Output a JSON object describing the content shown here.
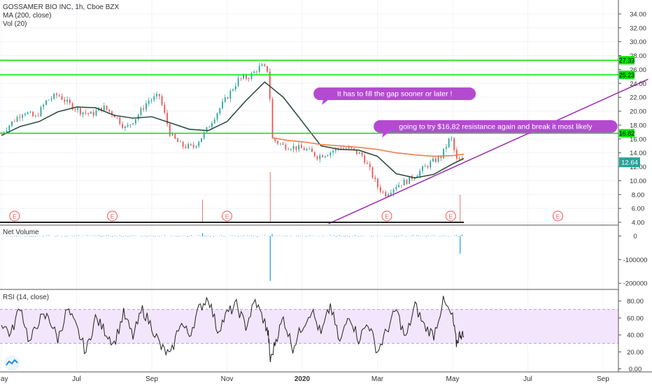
{
  "header": {
    "symbol_line": "GOSSAMER BIO INC, 1h, Cboe BZX",
    "ma_label": "MA (200, close)",
    "vol_label": "Vol (20)"
  },
  "panes": {
    "net_volume_label": "Net Volume",
    "rsi_label": "RSI (14, close)"
  },
  "colors": {
    "up": "#26a69a",
    "down": "#ef5350",
    "ma": "#2f4f3f",
    "support_resistance": "#00e600",
    "trendline": "#9c27b0",
    "annotation_bg": "#b44ad0",
    "rsi_band": "#f3e5fb",
    "net_volume": "#2196f3",
    "price_badge": "#26a69a"
  },
  "chart_data": [
    {
      "type": "candlestick",
      "title": "GOSSAMER BIO INC, 1h, Cboe BZX",
      "price_axis": [
        4.0,
        6.0,
        8.0,
        10.0,
        12.0,
        14.0,
        16.0,
        18.0,
        20.0,
        22.0,
        24.0,
        26.0,
        28.0,
        30.0,
        32.0,
        34.0
      ],
      "price_axis_labels": [
        "4.00",
        "6.00",
        "8.00",
        "10.00",
        "12.00",
        "14.00",
        "16.00",
        "18.00",
        "20.00",
        "22.00",
        "24.00",
        "26.00",
        "28.00",
        "30.00",
        "32.00",
        "34.00"
      ],
      "ylim": [
        3.8,
        35.4
      ],
      "time_labels": [
        "May",
        "Jul",
        "Sep",
        "Nov",
        "2020",
        "Mar",
        "May",
        "Jul",
        "Sep"
      ],
      "time_label_index": [
        0,
        2,
        4,
        6,
        8,
        10,
        12,
        14,
        16
      ],
      "xlim_index": [
        0,
        17.2
      ],
      "close_path": [
        [
          0.0,
          16.8
        ],
        [
          0.3,
          18.5
        ],
        [
          0.6,
          20.0
        ],
        [
          0.9,
          19.0
        ],
        [
          1.2,
          21.5
        ],
        [
          1.5,
          22.4
        ],
        [
          1.8,
          21.0
        ],
        [
          2.1,
          20.0
        ],
        [
          2.4,
          19.5
        ],
        [
          2.7,
          20.6
        ],
        [
          3.0,
          19.5
        ],
        [
          3.3,
          17.5
        ],
        [
          3.6,
          19.2
        ],
        [
          3.9,
          21.5
        ],
        [
          4.2,
          22.2
        ],
        [
          4.5,
          16.5
        ],
        [
          4.8,
          15.0
        ],
        [
          5.1,
          14.8
        ],
        [
          5.4,
          16.8
        ],
        [
          5.7,
          19.5
        ],
        [
          6.0,
          22.0
        ],
        [
          6.3,
          24.5
        ],
        [
          6.6,
          25.0
        ],
        [
          6.9,
          26.5
        ],
        [
          7.1,
          25.8
        ],
        [
          7.2,
          16.0
        ],
        [
          7.5,
          15.0
        ],
        [
          7.8,
          14.8
        ],
        [
          8.1,
          14.5
        ],
        [
          8.4,
          13.5
        ],
        [
          8.7,
          14.0
        ],
        [
          9.0,
          14.8
        ],
        [
          9.3,
          14.5
        ],
        [
          9.6,
          13.6
        ],
        [
          9.8,
          11.5
        ],
        [
          10.0,
          9.2
        ],
        [
          10.2,
          8.0
        ],
        [
          10.5,
          9.3
        ],
        [
          10.8,
          10.0
        ],
        [
          11.1,
          11.2
        ],
        [
          11.4,
          12.5
        ],
        [
          11.7,
          13.5
        ],
        [
          11.95,
          16.4
        ],
        [
          12.1,
          13.0
        ],
        [
          12.3,
          12.64
        ]
      ],
      "ma200_path": [
        [
          0.0,
          16.5
        ],
        [
          0.5,
          17.8
        ],
        [
          1.0,
          18.5
        ],
        [
          1.5,
          19.9
        ],
        [
          2.0,
          20.6
        ],
        [
          2.5,
          20.5
        ],
        [
          3.0,
          19.4
        ],
        [
          3.5,
          19.0
        ],
        [
          4.0,
          19.2
        ],
        [
          4.5,
          18.3
        ],
        [
          5.0,
          17.4
        ],
        [
          5.5,
          17.2
        ],
        [
          6.0,
          18.5
        ],
        [
          6.5,
          21.5
        ],
        [
          7.0,
          24.2
        ],
        [
          7.5,
          22.0
        ],
        [
          8.0,
          18.5
        ],
        [
          8.5,
          15.0
        ],
        [
          9.0,
          14.5
        ],
        [
          9.5,
          14.4
        ],
        [
          10.0,
          13.5
        ],
        [
          10.5,
          11.0
        ],
        [
          11.0,
          10.4
        ],
        [
          11.5,
          10.9
        ],
        [
          12.0,
          12.4
        ],
        [
          12.3,
          13.2
        ]
      ],
      "ema_path": [
        [
          7.2,
          16.2
        ],
        [
          7.6,
          15.8
        ],
        [
          8.0,
          15.6
        ],
        [
          8.5,
          15.2
        ],
        [
          9.0,
          15.0
        ],
        [
          9.5,
          14.8
        ],
        [
          10.0,
          14.5
        ],
        [
          10.5,
          14.0
        ],
        [
          11.0,
          13.7
        ],
        [
          11.5,
          13.5
        ],
        [
          12.0,
          13.6
        ],
        [
          12.3,
          13.8
        ]
      ],
      "horizontal_levels": [
        {
          "price": 27.33,
          "label": "27.33"
        },
        {
          "price": 25.23,
          "label": "25.23"
        },
        {
          "price": 16.82,
          "label": "16.82"
        }
      ],
      "trendline": {
        "from": [
          8.7,
          3.8
        ],
        "to": [
          17.2,
          24.6
        ]
      },
      "last_price": {
        "value": 12.64,
        "label": "12.64"
      },
      "annotations": [
        {
          "text": "It has to fill the gap sooner or later !",
          "anchor": [
            8.3,
            22.5
          ]
        },
        {
          "text": "going to try $16,82 resistance again  and break it most likely",
          "anchor": [
            9.9,
            17.8
          ]
        }
      ],
      "earnings_markers": {
        "label": "E",
        "index": [
          0.35,
          2.95,
          6.0,
          10.25,
          11.95,
          14.8
        ]
      },
      "volume_spikes": [
        {
          "index": 5.35,
          "value": 0.45
        },
        {
          "index": 7.15,
          "value": 1.0
        },
        {
          "index": 12.2,
          "value": 0.55
        }
      ]
    },
    {
      "type": "bar",
      "title": "Net Volume",
      "y_axis_labels": [
        "0",
        "-100000",
        "-200000"
      ],
      "y_axis_values": [
        0,
        -100000,
        -200000
      ],
      "ylim": [
        -220000,
        40000
      ],
      "spikes": [
        {
          "index": 5.35,
          "value": 12000
        },
        {
          "index": 7.15,
          "value": -190000
        },
        {
          "index": 7.2,
          "value": 8000
        },
        {
          "index": 12.2,
          "value": -75000
        },
        {
          "index": 12.25,
          "value": 6000
        }
      ]
    },
    {
      "type": "line",
      "title": "RSI (14, close)",
      "y_axis_labels": [
        "0.00",
        "20.00",
        "40.00",
        "60.00",
        "80.00"
      ],
      "y_axis_values": [
        0,
        20,
        40,
        60,
        80
      ],
      "ylim": [
        -2,
        92
      ],
      "band": [
        30,
        70
      ],
      "band_labels": [],
      "rsi_points": [
        [
          0.0,
          55
        ],
        [
          0.25,
          40
        ],
        [
          0.5,
          75
        ],
        [
          0.75,
          30
        ],
        [
          1.0,
          58
        ],
        [
          1.25,
          62
        ],
        [
          1.5,
          35
        ],
        [
          1.75,
          70
        ],
        [
          2.0,
          48
        ],
        [
          2.25,
          20
        ],
        [
          2.5,
          60
        ],
        [
          2.75,
          45
        ],
        [
          3.0,
          30
        ],
        [
          3.25,
          65
        ],
        [
          3.5,
          38
        ],
        [
          3.75,
          70
        ],
        [
          4.0,
          50
        ],
        [
          4.25,
          25
        ],
        [
          4.5,
          15
        ],
        [
          4.75,
          55
        ],
        [
          5.0,
          40
        ],
        [
          5.25,
          70
        ],
        [
          5.5,
          85
        ],
        [
          5.75,
          45
        ],
        [
          6.0,
          65
        ],
        [
          6.25,
          75
        ],
        [
          6.5,
          50
        ],
        [
          6.75,
          80
        ],
        [
          7.0,
          55
        ],
        [
          7.1,
          40
        ],
        [
          7.15,
          8
        ],
        [
          7.3,
          35
        ],
        [
          7.5,
          60
        ],
        [
          7.75,
          25
        ],
        [
          8.0,
          50
        ],
        [
          8.25,
          70
        ],
        [
          8.5,
          40
        ],
        [
          8.75,
          75
        ],
        [
          9.0,
          30
        ],
        [
          9.25,
          65
        ],
        [
          9.5,
          35
        ],
        [
          9.75,
          55
        ],
        [
          10.0,
          20
        ],
        [
          10.25,
          45
        ],
        [
          10.5,
          70
        ],
        [
          10.75,
          35
        ],
        [
          11.0,
          75
        ],
        [
          11.25,
          50
        ],
        [
          11.5,
          40
        ],
        [
          11.75,
          80
        ],
        [
          12.0,
          60
        ],
        [
          12.1,
          30
        ],
        [
          12.2,
          42
        ],
        [
          12.3,
          38
        ]
      ]
    }
  ]
}
